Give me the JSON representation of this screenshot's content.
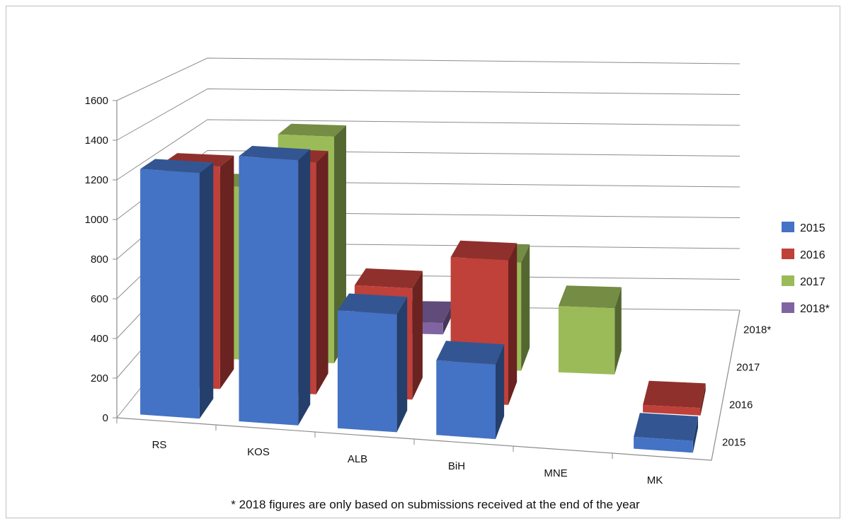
{
  "chart_data": {
    "type": "bar",
    "subtype": "3d-clustered-column",
    "title": "",
    "xlabel": "",
    "ylabel": "",
    "categories": [
      "RS",
      "KOS",
      "ALB",
      "BiH",
      "MNE",
      "MK"
    ],
    "depth_labels": [
      "2015",
      "2016",
      "2017",
      "2018*"
    ],
    "y_ticks": [
      "0",
      "200",
      "400",
      "600",
      "800",
      "1000",
      "1200",
      "1400",
      "1600"
    ],
    "ylim": [
      0,
      1600
    ],
    "grid": true,
    "legend_position": "right",
    "series": [
      {
        "name": "2015",
        "color": "#4472C4",
        "values": [
          1250,
          1350,
          600,
          380,
          0,
          60
        ]
      },
      {
        "name": "2016",
        "color": "#C0403A",
        "values": [
          1200,
          1250,
          600,
          780,
          0,
          40
        ]
      },
      {
        "name": "2017",
        "color": "#9BBB59",
        "values": [
          990,
          1300,
          0,
          620,
          380,
          0
        ]
      },
      {
        "name": "2018*",
        "color": "#8064A2",
        "values": [
          0,
          0,
          70,
          0,
          0,
          0
        ]
      }
    ],
    "footnote": "* 2018 figures are only based on submissions received at the end of the year"
  }
}
